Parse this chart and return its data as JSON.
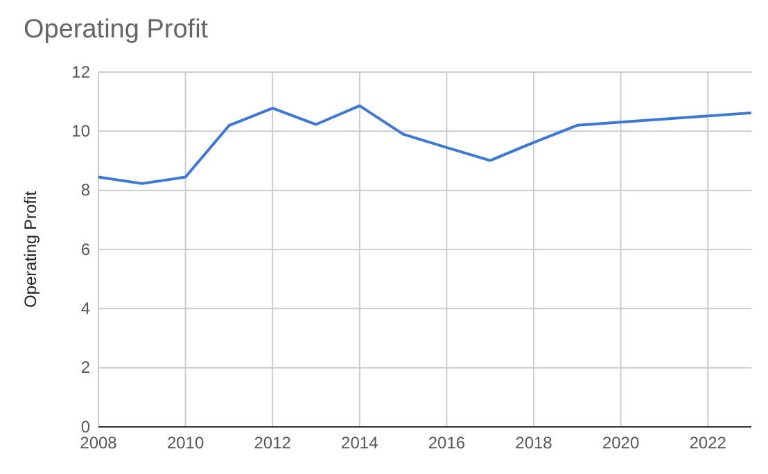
{
  "chart_data": {
    "type": "line",
    "title": "Operating Profit",
    "ylabel": "Operating Profit",
    "x": [
      2008,
      2009,
      2010,
      2011,
      2012,
      2013,
      2014,
      2015,
      2016,
      2017,
      2018,
      2019,
      2023
    ],
    "series": [
      {
        "color": "#3c78d8",
        "values": [
          8.45,
          8.23,
          8.45,
          10.19,
          10.78,
          10.23,
          10.86,
          9.9,
          9.45,
          9.01,
          9.62,
          10.2,
          10.62
        ]
      }
    ],
    "xlim": [
      2008,
      2023
    ],
    "xticks": [
      2008,
      2010,
      2012,
      2014,
      2016,
      2018,
      2020,
      2022
    ],
    "ylim": [
      0,
      12
    ],
    "yticks": [
      0,
      2,
      4,
      6,
      8,
      10,
      12
    ],
    "grid": true,
    "marker": "none",
    "line_style": "solid"
  }
}
